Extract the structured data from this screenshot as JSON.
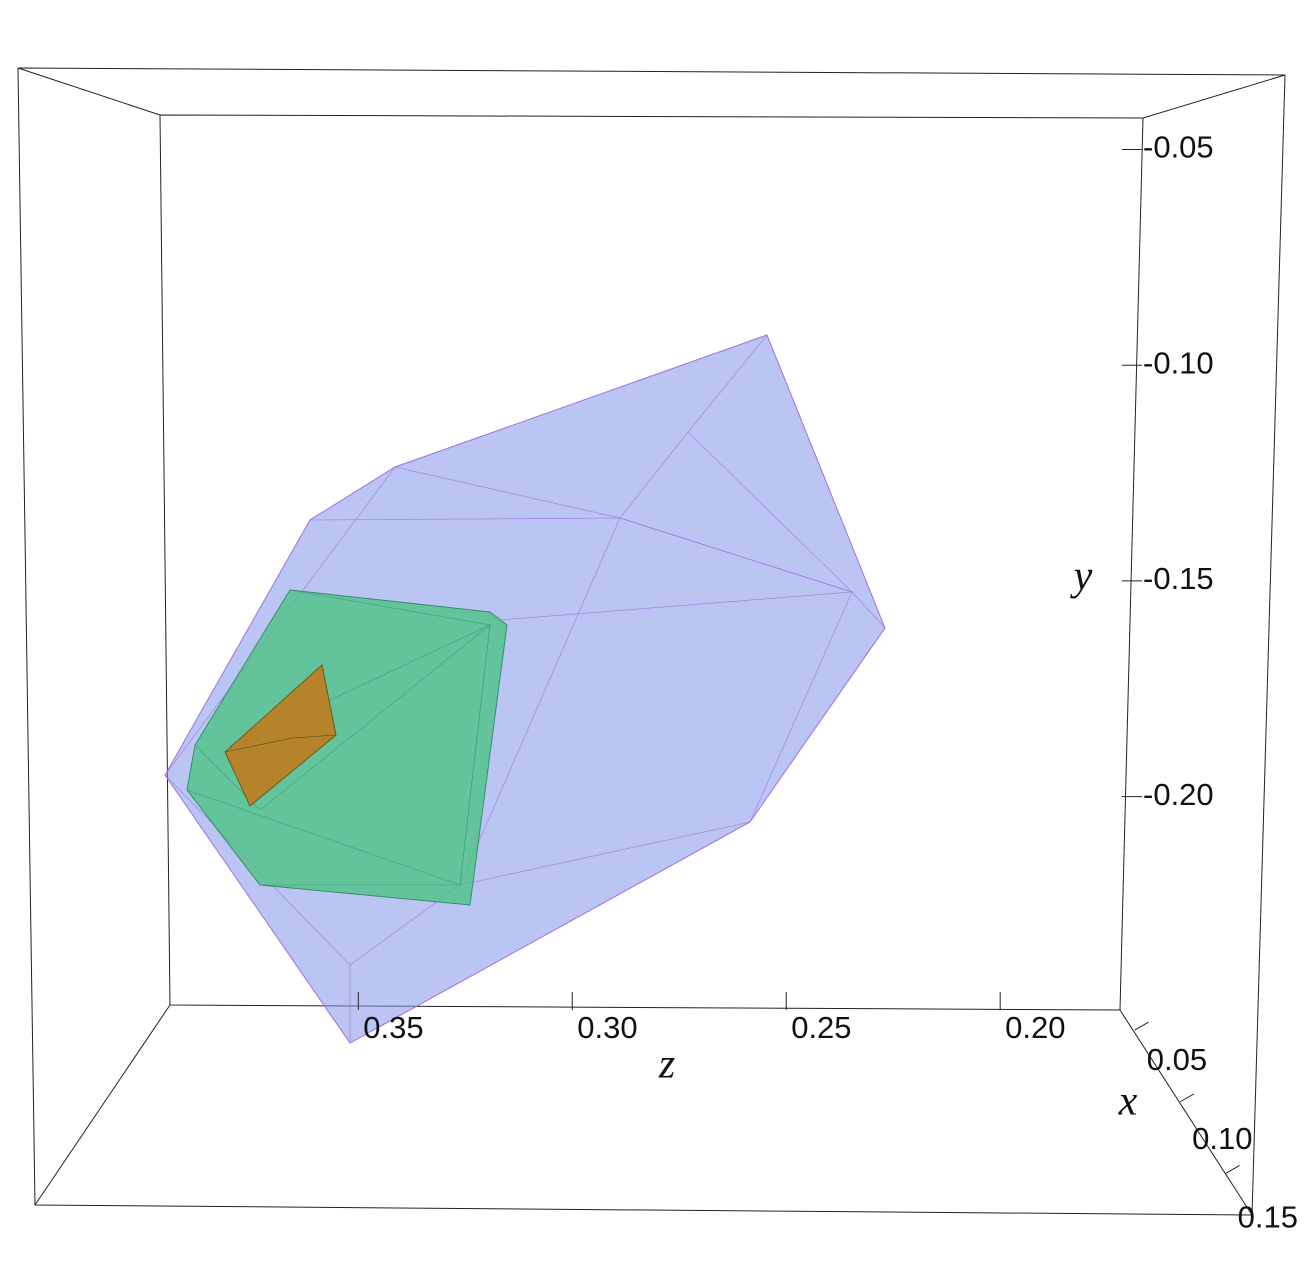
{
  "chart_data": {
    "type": "polyhedra3d",
    "xlabel": "x",
    "ylabel": "y",
    "zlabel": "z",
    "xlim": [
      0.036,
      0.179
    ],
    "xticks": [
      0.05,
      {
        "value": 0.1,
        "label": "0.10"
      },
      0.15
    ],
    "ylim": [
      -0.249,
      -0.042
    ],
    "yticks": [
      -0.05,
      {
        "value": -0.1,
        "label": "-0.10"
      },
      -0.15,
      {
        "value": -0.2,
        "label": "-0.20"
      }
    ],
    "zlim": [
      0.394,
      0.172
    ],
    "zticks": [
      0.35,
      {
        "value": 0.3,
        "label": "0.30"
      },
      0.25,
      {
        "value": 0.2,
        "label": "0.20"
      }
    ]
  }
}
